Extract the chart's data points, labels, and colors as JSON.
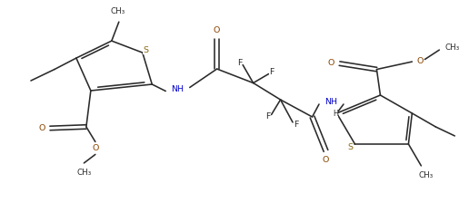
{
  "background": "#ffffff",
  "lc": "#2a2a2a",
  "nc": "#0000cd",
  "oc": "#8b4500",
  "sc": "#8b6914",
  "fc": "#2a2a2a",
  "fs": 6.8,
  "lw": 1.15,
  "xlim": [
    0,
    10.12
  ],
  "ylim": [
    0,
    4.48
  ]
}
